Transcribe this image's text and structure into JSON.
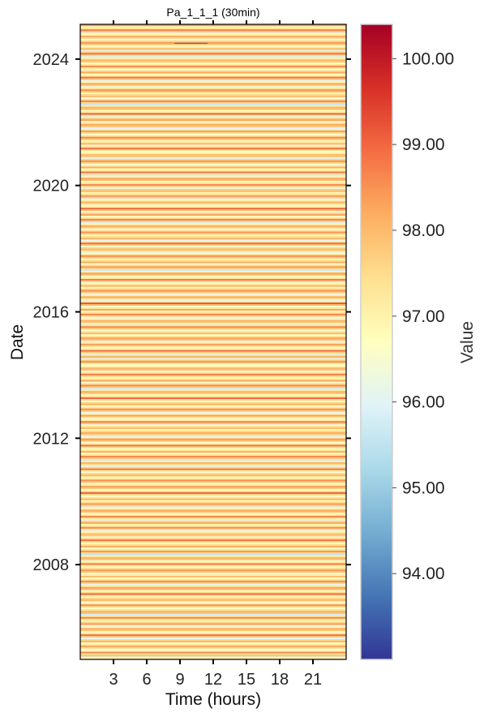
{
  "chart_data": {
    "type": "heatmap",
    "title": "Pa_1_1_1 (30min)",
    "xlabel": "Time (hours)",
    "ylabel": "Date",
    "xlim": [
      0,
      24
    ],
    "x_ticks": [
      3,
      6,
      9,
      12,
      15,
      18,
      21
    ],
    "ylim": [
      2005.0,
      2025.1
    ],
    "y_ticks": [
      {
        "value": 2008,
        "label": "2008"
      },
      {
        "value": 2012,
        "label": "2012"
      },
      {
        "value": 2016,
        "label": "2016"
      },
      {
        "value": 2020,
        "label": "2020"
      },
      {
        "value": 2024,
        "label": "2024"
      }
    ],
    "colorbar": {
      "label": "Value",
      "colormap": "RdYlBu_r",
      "range": [
        93.0,
        100.4
      ],
      "ticks": [
        "94.00",
        "95.00",
        "96.00",
        "97.00",
        "98.00",
        "99.00",
        "100.00"
      ],
      "colors": [
        "#313695",
        "#4575b4",
        "#74add1",
        "#abd9e9",
        "#e0f3f8",
        "#ffffbf",
        "#fee090",
        "#fdae61",
        "#f46d43",
        "#d73027",
        "#a50026"
      ]
    },
    "rows": {
      "start_year": 2005.0,
      "step_years": 0.05,
      "values": [
        97.2,
        96.3,
        97.9,
        97.4,
        98.6,
        97.0,
        96.4,
        97.6,
        98.3,
        97.1,
        96.8,
        98.1,
        97.5,
        96.0,
        97.7,
        98.9,
        97.3,
        96.6,
        97.8,
        98.2,
        97.0,
        96.2,
        98.4,
        97.6,
        96.9,
        97.4,
        98.7,
        97.2,
        95.8,
        97.9,
        98.1,
        97.3,
        96.7,
        97.6,
        98.5,
        97.1,
        96.4,
        98.0,
        97.8,
        96.9,
        97.3,
        99.0,
        97.5,
        96.6,
        97.9,
        98.3,
        97.2,
        96.1,
        97.7,
        98.6,
        97.4,
        96.8,
        98.0,
        97.1,
        96.3,
        97.8,
        98.4,
        97.6,
        96.9,
        97.2,
        98.8,
        97.3,
        96.5,
        97.9,
        98.1,
        97.0,
        95.6,
        97.6,
        98.5,
        97.4,
        96.7,
        98.2,
        97.5,
        96.8,
        97.3,
        98.9,
        97.7,
        96.4,
        97.8,
        98.0,
        97.1,
        96.2,
        97.5,
        98.6,
        97.3,
        96.9,
        98.3,
        97.6,
        96.1,
        97.4,
        98.7,
        97.2,
        96.6,
        97.9,
        98.2,
        97.0,
        95.9,
        97.7,
        98.4,
        97.5,
        96.8,
        98.1,
        97.3,
        96.5,
        97.6,
        99.1,
        97.4,
        96.7,
        97.8,
        98.3,
        97.2,
        96.3,
        97.9,
        98.5,
        97.1,
        96.9,
        98.0,
        97.7,
        96.4,
        97.3,
        98.8,
        97.6,
        96.2,
        97.5,
        98.1,
        97.0,
        95.7,
        97.8,
        98.6,
        97.4,
        96.6,
        98.2,
        97.2,
        96.8,
        97.6,
        98.9,
        97.3,
        96.5,
        97.9,
        98.4,
        97.1,
        96.1,
        97.7,
        98.2,
        97.5,
        96.9,
        98.0,
        97.4,
        96.3,
        97.8,
        98.7,
        97.2,
        96.6,
        97.6,
        98.3,
        97.0,
        96.0,
        97.9,
        98.5,
        97.3,
        96.7,
        98.1,
        97.6,
        96.4,
        97.5,
        99.0,
        97.4,
        96.8,
        97.7,
        98.2,
        97.1,
        95.8,
        97.8,
        98.6,
        97.5,
        96.5,
        98.3,
        97.2,
        96.9,
        97.6,
        98.8,
        97.3,
        96.2,
        97.9,
        98.0,
        97.0,
        96.6,
        97.4,
        98.5,
        97.7,
        96.3,
        98.2,
        97.5,
        96.1,
        97.8,
        98.9,
        97.2,
        96.7,
        97.6,
        98.4,
        97.1,
        95.9,
        97.9,
        98.3,
        97.4,
        96.8,
        98.0,
        97.3,
        96.5,
        97.7,
        98.6,
        97.5,
        96.4,
        97.8,
        98.1,
        97.0,
        96.2,
        97.6,
        98.7,
        97.3,
        96.9,
        98.3,
        97.2,
        96.6,
        97.9,
        99.2,
        97.4,
        96.3,
        97.5,
        98.2,
        97.1,
        96.0,
        97.8,
        98.5,
        97.6,
        96.7,
        98.1,
        97.3,
        96.4,
        97.7,
        98.8,
        97.2,
        96.8,
        97.9,
        98.3,
        97.0,
        95.7,
        97.6,
        98.4,
        97.5,
        96.5,
        98.2,
        97.4,
        96.9,
        97.8,
        98.6,
        97.1,
        96.2,
        97.3,
        98.0,
        97.7,
        96.6,
        97.9,
        98.9,
        97.2,
        96.1,
        98.1,
        97.5,
        96.8,
        97.6,
        98.5,
        97.3,
        96.4,
        97.8,
        98.2,
        97.0,
        95.9,
        97.7,
        98.7,
        97.4,
        96.7,
        98.3,
        97.6,
        96.3,
        97.9,
        99.0,
        97.2,
        96.5,
        97.5,
        98.1,
        97.1,
        96.0,
        97.8,
        98.4,
        97.3,
        96.9,
        98.0,
        97.7,
        96.2,
        97.6,
        98.6,
        97.4,
        96.6,
        97.9,
        98.3,
        97.0,
        95.8,
        97.5,
        98.8,
        97.2,
        96.8,
        98.2,
        97.3,
        96.4,
        97.7,
        98.5,
        97.6,
        96.1,
        97.8,
        98.0,
        97.1,
        96.7,
        97.4,
        98.9,
        97.5,
        96.3,
        98.1,
        97.2,
        96.9,
        97.9,
        98.6,
        97.3,
        96.5,
        97.6,
        98.4,
        97.0,
        96.0,
        97.8,
        98.2,
        97.4,
        96.6,
        98.3,
        97.7,
        96.2,
        97.5,
        99.1,
        97.2,
        96.8,
        97.9,
        98.1,
        97.1,
        95.6,
        97.6,
        98.7,
        97.3,
        96.4,
        98.0,
        97.5,
        96.9,
        97.8,
        98.5,
        97.4,
        96.3,
        97.7,
        98.3,
        97.0,
        96.1,
        97.9,
        98.8,
        97.2,
        96.7,
        98.2,
        97.6,
        96.5,
        97.4,
        98.6,
        97.3,
        96.8,
        97.8,
        98.0,
        97.1,
        95.9,
        97.5,
        98.9,
        97.7,
        96.2,
        98.1,
        97.2,
        96.6,
        97.9,
        98.4,
        97.5,
        96.4,
        97.6,
        98.2,
        97.0,
        96.0,
        97.8,
        98.7,
        97.3,
        96.9,
        98.3,
        97.4,
        96.3,
        97.7,
        99.0,
        97.2,
        96.5,
        97.9
      ]
    },
    "extra_marks": [
      {
        "from_hour": 8.5,
        "to_hour": 11.5,
        "year": 2024.5,
        "value": 93.5
      }
    ]
  }
}
